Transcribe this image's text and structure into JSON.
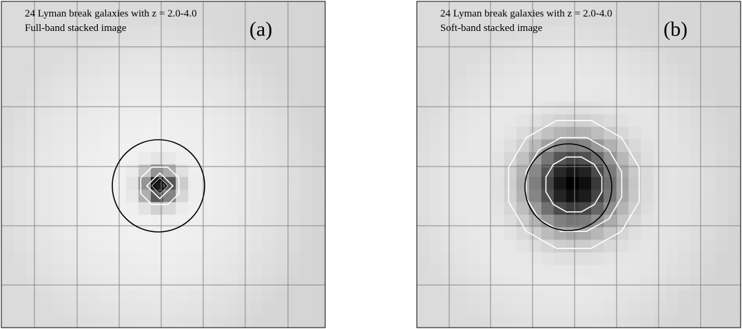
{
  "panels": [
    {
      "caption": [
        "24 Lyman break galaxies with z = 2.0-4.0",
        "Full-band stacked image"
      ],
      "label": "(a)"
    },
    {
      "caption": [
        "24 Lyman break galaxies with z = 2.0-4.0",
        "Soft-band stacked image"
      ],
      "label": "(b)"
    }
  ]
}
